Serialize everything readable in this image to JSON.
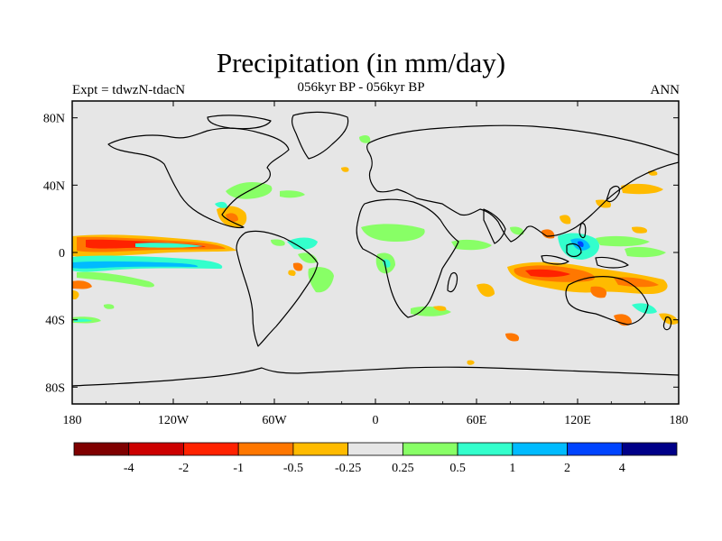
{
  "title": "Precipitation (in mm/day)",
  "subtitle_left": "Expt = tdwzN-tdacN",
  "subtitle_center": "056kyr BP - 056kyr BP",
  "subtitle_right": "ANN",
  "map": {
    "lon_labels": [
      "180",
      "120W",
      "60W",
      "0",
      "60E",
      "120E",
      "180"
    ],
    "lat_labels": [
      "80N",
      "40N",
      "0",
      "40S",
      "80S"
    ],
    "lon_range": [
      -180,
      180
    ],
    "lat_range": [
      -90,
      90
    ],
    "background_color": "#e6e6e6"
  },
  "colorbar": {
    "colors": [
      "#7f0000",
      "#cc0000",
      "#ff2200",
      "#ff7700",
      "#ffbb00",
      "#e6e6e6",
      "#88ff66",
      "#33ffcc",
      "#00bbff",
      "#0044ff",
      "#000088"
    ],
    "labels": [
      "-4",
      "-2",
      "-1",
      "-0.5",
      "-0.25",
      "0.25",
      "0.5",
      "1",
      "2",
      "4"
    ]
  }
}
